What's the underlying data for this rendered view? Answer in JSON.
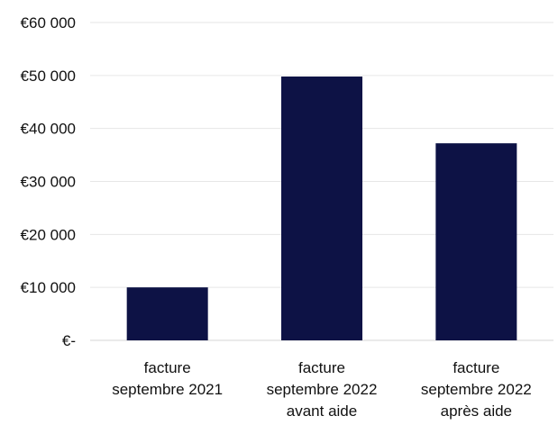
{
  "chart_data": {
    "type": "bar",
    "title": "",
    "xlabel": "",
    "ylabel": "",
    "categories": [
      [
        "facture",
        "septembre 2021"
      ],
      [
        "facture",
        "septembre 2022",
        "avant aide"
      ],
      [
        "facture",
        "septembre 2022",
        "après aide"
      ]
    ],
    "values": [
      10000,
      49800,
      37200
    ],
    "ylim": [
      0,
      60000
    ],
    "yticks": [
      0,
      10000,
      20000,
      30000,
      40000,
      50000,
      60000
    ],
    "ytick_labels": [
      "€-",
      "€10 000",
      "€20 000",
      "€30 000",
      "€40 000",
      "€50 000",
      "€60 000"
    ],
    "grid": true,
    "legend": false,
    "bar_color": "#0d1245"
  }
}
